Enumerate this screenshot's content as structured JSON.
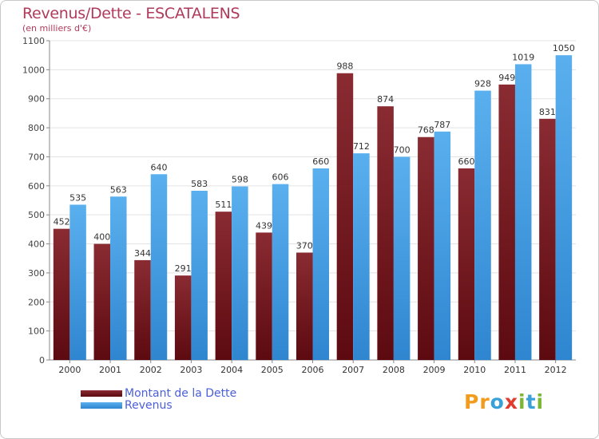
{
  "chart_data": {
    "type": "bar",
    "title": "Revenus/Dette - ESCATALENS",
    "subtitle": "(en milliers d'€)",
    "categories": [
      "2000",
      "2001",
      "2002",
      "2003",
      "2004",
      "2005",
      "2006",
      "2007",
      "2008",
      "2009",
      "2010",
      "2011",
      "2012"
    ],
    "series": [
      {
        "name": "Montant de la Dette",
        "color": "#7a1f24",
        "values": [
          452,
          400,
          344,
          291,
          511,
          439,
          370,
          988,
          874,
          768,
          660,
          949,
          831
        ]
      },
      {
        "name": "Revenus",
        "color": "#4aa3e8",
        "values": [
          535,
          563,
          640,
          583,
          598,
          606,
          660,
          712,
          700,
          787,
          928,
          1019,
          1050
        ]
      }
    ],
    "ylim": [
      0,
      1100
    ],
    "yticks": [
      0,
      100,
      200,
      300,
      400,
      500,
      600,
      700,
      800,
      900,
      1000,
      1100
    ],
    "grid": true,
    "legend_position": "bottom-left"
  },
  "logo": {
    "letters": [
      "P",
      "r",
      "o",
      "x",
      "i",
      "t",
      "i"
    ],
    "colors": [
      "#f29b1d",
      "#f29b1d",
      "#3aa0d8",
      "#e23b2e",
      "#7ab834",
      "#3aa0d8",
      "#7ab834"
    ]
  }
}
